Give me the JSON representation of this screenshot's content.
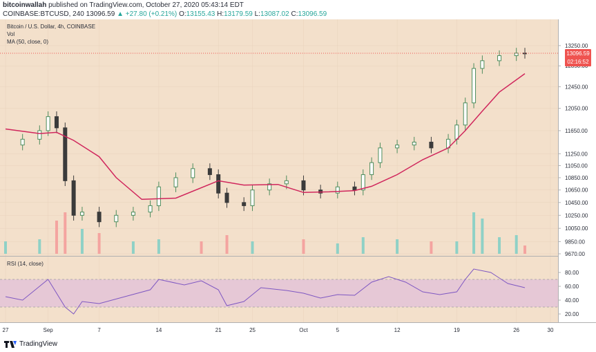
{
  "header": {
    "publisher": "bitcoinwallah",
    "published_text": "published on TradingView.com, October 27, 2020 05:43:14 EDT",
    "symbol": "COINBASE:BTCUSD, 240",
    "last": "13096.59",
    "change": "▲ +27.80 (+0.21%)",
    "o_label": "O:",
    "o": "13155.43",
    "h_label": "H:",
    "h": "13179.59",
    "l_label": "L:",
    "l": "13087.02",
    "c_label": "C:",
    "c": "13096.59"
  },
  "legend": {
    "title": "Bitcoin / U.S. Dollar, 4h, COINBASE",
    "vol": "Vol",
    "ma": "MA (50, close, 0)",
    "rsi": "RSI (14, close)"
  },
  "price_tag": {
    "value": "13096.59",
    "countdown": "02:16:52"
  },
  "footer": {
    "brand": "TradingView"
  },
  "colors": {
    "background": "#f3e0cb",
    "up": "#26a69a",
    "candle_up": "#4c8c5c",
    "candle_down": "#3b3b3b",
    "ma": "#d0265c",
    "rsi": "#7e57c2",
    "rsi_band": "#e6c8d6",
    "price_tag": "#ef5350",
    "vol_up": "#8fd1c6",
    "vol_down": "#f4a4a0"
  },
  "chart_data": {
    "type": "candlestick",
    "price_axis": {
      "ticks": [
        13250,
        12850,
        12450,
        12050,
        11650,
        11250,
        11050,
        10850,
        10650,
        10450,
        10250,
        10050,
        9850,
        9670
      ],
      "tick_labels": [
        "13250.00",
        "12850.00",
        "12450.00",
        "12050.00",
        "11650.00",
        "11250.00",
        "11050.00",
        "10850.00",
        "10650.00",
        "10450.00",
        "10250.00",
        "10050.00",
        "9850.00",
        "9670.00"
      ],
      "scale": "log",
      "range": [
        9670,
        13700
      ]
    },
    "rsi_axis": {
      "ticks": [
        80,
        60,
        40,
        20
      ],
      "tick_labels": [
        "80.00",
        "60.00",
        "40.00",
        "20.00"
      ],
      "band": [
        30,
        70
      ],
      "range": [
        10,
        100
      ]
    },
    "x_axis": {
      "labels": [
        "27",
        "Sep",
        "7",
        "14",
        "21",
        "25",
        "Oct",
        "5",
        "12",
        "19",
        "26",
        "30"
      ],
      "label_dates": [
        "2020-08-27",
        "2020-09-01",
        "2020-09-07",
        "2020-09-14",
        "2020-09-21",
        "2020-09-25",
        "2020-10-01",
        "2020-10-05",
        "2020-10-12",
        "2020-10-19",
        "2020-10-26",
        "2020-10-30"
      ],
      "range": [
        "2020-08-27",
        "2020-10-30"
      ]
    },
    "price_series": {
      "name": "BTCUSD",
      "dates": [
        "2020-08-27",
        "2020-08-29",
        "2020-08-31",
        "2020-09-01",
        "2020-09-02",
        "2020-09-03",
        "2020-09-04",
        "2020-09-05",
        "2020-09-07",
        "2020-09-09",
        "2020-09-11",
        "2020-09-13",
        "2020-09-14",
        "2020-09-16",
        "2020-09-18",
        "2020-09-20",
        "2020-09-21",
        "2020-09-22",
        "2020-09-24",
        "2020-09-25",
        "2020-09-27",
        "2020-09-29",
        "2020-10-01",
        "2020-10-03",
        "2020-10-05",
        "2020-10-07",
        "2020-10-08",
        "2020-10-09",
        "2020-10-10",
        "2020-10-12",
        "2020-10-14",
        "2020-10-16",
        "2020-10-18",
        "2020-10-19",
        "2020-10-20",
        "2020-10-21",
        "2020-10-22",
        "2020-10-24",
        "2020-10-26",
        "2020-10-27"
      ],
      "close": [
        11400,
        11500,
        11650,
        11900,
        11700,
        10800,
        10250,
        10300,
        10150,
        10250,
        10300,
        10400,
        10700,
        10850,
        11000,
        10900,
        10600,
        10450,
        10400,
        10650,
        10750,
        10800,
        10650,
        10600,
        10700,
        10650,
        10900,
        11100,
        11350,
        11400,
        11450,
        11350,
        11500,
        11750,
        12150,
        12800,
        12950,
        13050,
        13100,
        13096.59
      ]
    },
    "ma_series": {
      "name": "MA (50, close, 0)",
      "dates": [
        "2020-08-27",
        "2020-08-31",
        "2020-09-02",
        "2020-09-04",
        "2020-09-07",
        "2020-09-09",
        "2020-09-12",
        "2020-09-16",
        "2020-09-21",
        "2020-09-24",
        "2020-09-28",
        "2020-10-01",
        "2020-10-04",
        "2020-10-07",
        "2020-10-09",
        "2020-10-12",
        "2020-10-15",
        "2020-10-18",
        "2020-10-20",
        "2020-10-22",
        "2020-10-24",
        "2020-10-27"
      ],
      "values": [
        11680,
        11600,
        11620,
        11480,
        11200,
        10850,
        10500,
        10520,
        10800,
        10730,
        10740,
        10610,
        10620,
        10640,
        10710,
        10900,
        11150,
        11350,
        11650,
        12000,
        12350,
        12700
      ]
    },
    "rsi_series": {
      "name": "RSI (14, close)",
      "dates": [
        "2020-08-27",
        "2020-08-29",
        "2020-08-31",
        "2020-09-01",
        "2020-09-03",
        "2020-09-04",
        "2020-09-05",
        "2020-09-07",
        "2020-09-10",
        "2020-09-13",
        "2020-09-14",
        "2020-09-17",
        "2020-09-19",
        "2020-09-21",
        "2020-09-22",
        "2020-09-24",
        "2020-09-26",
        "2020-09-29",
        "2020-10-01",
        "2020-10-03",
        "2020-10-05",
        "2020-10-07",
        "2020-10-09",
        "2020-10-11",
        "2020-10-13",
        "2020-10-15",
        "2020-10-17",
        "2020-10-19",
        "2020-10-20",
        "2020-10-21",
        "2020-10-23",
        "2020-10-24",
        "2020-10-25",
        "2020-10-27"
      ],
      "values": [
        45,
        40,
        60,
        70,
        30,
        20,
        38,
        35,
        45,
        55,
        70,
        62,
        68,
        55,
        32,
        38,
        58,
        54,
        50,
        43,
        48,
        47,
        66,
        74,
        66,
        52,
        48,
        52,
        70,
        85,
        80,
        72,
        64,
        58
      ]
    },
    "volume_series": {
      "name": "Vol",
      "dates": [
        "2020-08-27",
        "2020-08-31",
        "2020-09-02",
        "2020-09-03",
        "2020-09-05",
        "2020-09-07",
        "2020-09-11",
        "2020-09-14",
        "2020-09-19",
        "2020-09-22",
        "2020-09-25",
        "2020-10-01",
        "2020-10-05",
        "2020-10-08",
        "2020-10-12",
        "2020-10-16",
        "2020-10-19",
        "2020-10-21",
        "2020-10-22",
        "2020-10-24",
        "2020-10-26",
        "2020-10-27"
      ],
      "values": [
        0.3,
        0.35,
        0.8,
        1.0,
        0.6,
        0.5,
        0.3,
        0.35,
        0.3,
        0.45,
        0.3,
        0.35,
        0.25,
        0.4,
        0.35,
        0.3,
        0.3,
        1.0,
        0.85,
        0.4,
        0.45,
        0.2
      ]
    }
  }
}
